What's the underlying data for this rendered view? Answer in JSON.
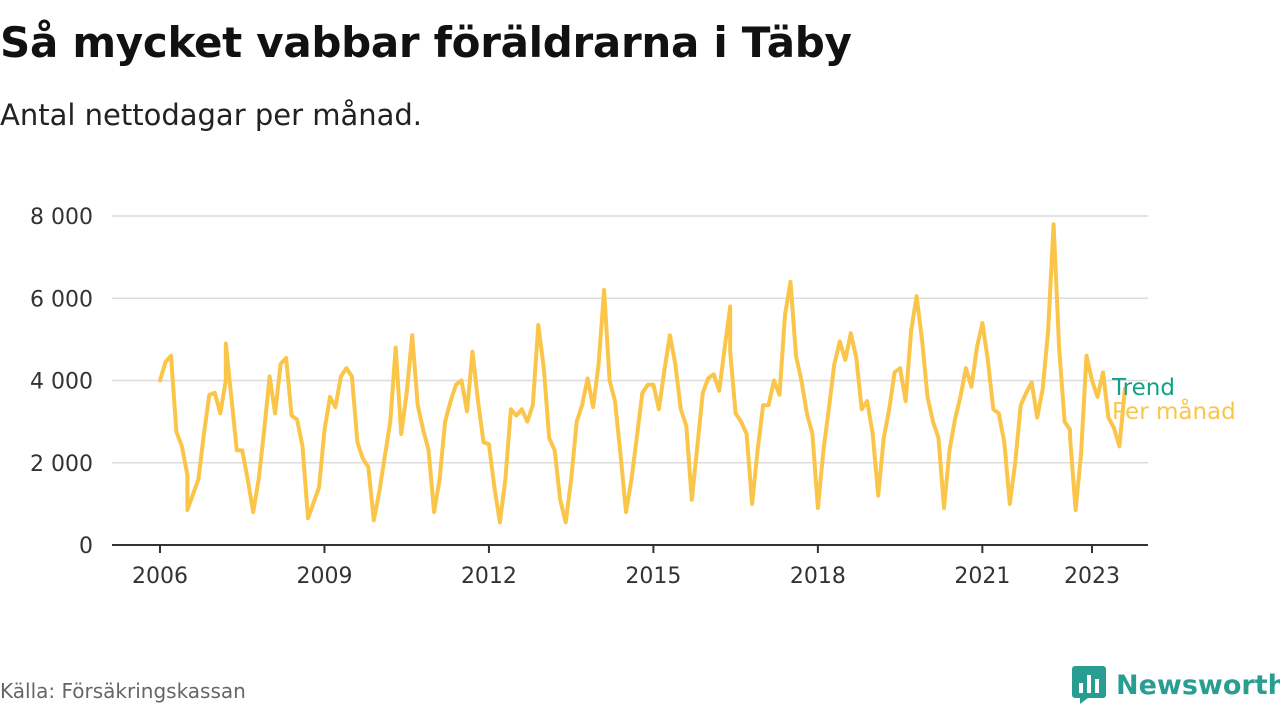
{
  "title": "Så mycket vabbar föräldrarna i Täby",
  "subtitle": "Antal nettodagar per månad.",
  "source": "Källa: Försäkringskassan",
  "brand": "Newsworthy",
  "colors": {
    "monthly": "#fbc54a",
    "trend": "#13a089",
    "grid": "#dcdcdc",
    "axis": "#333333",
    "brand": "#2a9d93"
  },
  "chart_data": {
    "type": "line",
    "title": "Så mycket vabbar föräldrarna i Täby",
    "subtitle": "Antal nettodagar per månad.",
    "x_ticks": [
      "2006",
      "2009",
      "2012",
      "2015",
      "2018",
      "2021",
      "2023"
    ],
    "x_tick_years": [
      2006,
      2009,
      2012,
      2015,
      2018,
      2021,
      2023
    ],
    "y_ticks": [
      0,
      2000,
      4000,
      6000,
      8000
    ],
    "y_tick_labels": [
      "0",
      "2 000",
      "4 000",
      "6 000",
      "8 000"
    ],
    "ylim": [
      0,
      8000
    ],
    "xlim": [
      2006,
      2023.3
    ],
    "grid": "horizontal",
    "legend": "inline labels at end of lines",
    "series": [
      {
        "name": "Per månad",
        "color": "#fbc54a",
        "points": [
          [
            2006.0,
            4000
          ],
          [
            2006.1,
            4450
          ],
          [
            2006.2,
            4600
          ],
          [
            2006.3,
            2750
          ],
          [
            2006.4,
            2400
          ],
          [
            2006.5,
            1700
          ],
          [
            2006.5,
            850
          ],
          [
            2006.7,
            1600
          ],
          [
            2006.8,
            2700
          ],
          [
            2006.9,
            3650
          ],
          [
            2007.0,
            3700
          ],
          [
            2007.1,
            3200
          ],
          [
            2007.2,
            4000
          ],
          [
            2007.2,
            4900
          ],
          [
            2007.3,
            3600
          ],
          [
            2007.4,
            2300
          ],
          [
            2007.5,
            2300
          ],
          [
            2007.6,
            1600
          ],
          [
            2007.7,
            800
          ],
          [
            2007.8,
            1600
          ],
          [
            2007.9,
            2800
          ],
          [
            2008.0,
            4100
          ],
          [
            2008.1,
            3200
          ],
          [
            2008.2,
            4400
          ],
          [
            2008.3,
            4550
          ],
          [
            2008.4,
            3150
          ],
          [
            2008.5,
            3050
          ],
          [
            2008.6,
            2400
          ],
          [
            2008.7,
            650
          ],
          [
            2008.9,
            1400
          ],
          [
            2009.0,
            2800
          ],
          [
            2009.1,
            3600
          ],
          [
            2009.2,
            3350
          ],
          [
            2009.3,
            4100
          ],
          [
            2009.4,
            4300
          ],
          [
            2009.5,
            4100
          ],
          [
            2009.6,
            2500
          ],
          [
            2009.7,
            2100
          ],
          [
            2009.8,
            1900
          ],
          [
            2009.9,
            600
          ],
          [
            2010.0,
            1300
          ],
          [
            2010.2,
            3000
          ],
          [
            2010.3,
            4800
          ],
          [
            2010.4,
            2700
          ],
          [
            2010.5,
            3700
          ],
          [
            2010.6,
            5100
          ],
          [
            2010.7,
            3400
          ],
          [
            2010.8,
            2800
          ],
          [
            2010.9,
            2300
          ],
          [
            2011.0,
            800
          ],
          [
            2011.1,
            1600
          ],
          [
            2011.2,
            3000
          ],
          [
            2011.3,
            3500
          ],
          [
            2011.4,
            3900
          ],
          [
            2011.5,
            4000
          ],
          [
            2011.6,
            3250
          ],
          [
            2011.7,
            4700
          ],
          [
            2011.8,
            3500
          ],
          [
            2011.9,
            2500
          ],
          [
            2012.0,
            2450
          ],
          [
            2012.1,
            1400
          ],
          [
            2012.2,
            550
          ],
          [
            2012.3,
            1600
          ],
          [
            2012.4,
            3300
          ],
          [
            2012.5,
            3150
          ],
          [
            2012.6,
            3300
          ],
          [
            2012.7,
            3000
          ],
          [
            2012.8,
            3400
          ],
          [
            2012.9,
            5350
          ],
          [
            2013.0,
            4300
          ],
          [
            2013.1,
            2600
          ],
          [
            2013.2,
            2300
          ],
          [
            2013.3,
            1100
          ],
          [
            2013.4,
            550
          ],
          [
            2013.5,
            1600
          ],
          [
            2013.6,
            3000
          ],
          [
            2013.7,
            3400
          ],
          [
            2013.8,
            4050
          ],
          [
            2013.9,
            3350
          ],
          [
            2014.0,
            4400
          ],
          [
            2014.1,
            6200
          ],
          [
            2014.2,
            4000
          ],
          [
            2014.3,
            3500
          ],
          [
            2014.4,
            2200
          ],
          [
            2014.5,
            800
          ],
          [
            2014.6,
            1600
          ],
          [
            2014.8,
            3700
          ],
          [
            2014.9,
            3900
          ],
          [
            2015.0,
            3900
          ],
          [
            2015.1,
            3300
          ],
          [
            2015.2,
            4250
          ],
          [
            2015.3,
            5100
          ],
          [
            2015.4,
            4400
          ],
          [
            2015.5,
            3300
          ],
          [
            2015.6,
            2900
          ],
          [
            2015.7,
            1100
          ],
          [
            2015.8,
            2400
          ],
          [
            2015.9,
            3700
          ],
          [
            2016.0,
            4050
          ],
          [
            2016.1,
            4150
          ],
          [
            2016.2,
            3750
          ],
          [
            2016.3,
            4800
          ],
          [
            2016.4,
            5800
          ],
          [
            2016.4,
            4700
          ],
          [
            2016.5,
            3200
          ],
          [
            2016.6,
            3000
          ],
          [
            2016.7,
            2700
          ],
          [
            2016.8,
            1000
          ],
          [
            2016.9,
            2300
          ],
          [
            2017.0,
            3400
          ],
          [
            2017.1,
            3400
          ],
          [
            2017.2,
            4000
          ],
          [
            2017.3,
            3650
          ],
          [
            2017.4,
            5600
          ],
          [
            2017.5,
            6400
          ],
          [
            2017.6,
            4600
          ],
          [
            2017.7,
            4000
          ],
          [
            2017.8,
            3200
          ],
          [
            2017.9,
            2700
          ],
          [
            2018.0,
            900
          ],
          [
            2018.1,
            2300
          ],
          [
            2018.2,
            3300
          ],
          [
            2018.3,
            4400
          ],
          [
            2018.4,
            4950
          ],
          [
            2018.5,
            4500
          ],
          [
            2018.6,
            5150
          ],
          [
            2018.7,
            4550
          ],
          [
            2018.8,
            3300
          ],
          [
            2018.9,
            3500
          ],
          [
            2019.0,
            2700
          ],
          [
            2019.1,
            1200
          ],
          [
            2019.2,
            2600
          ],
          [
            2019.3,
            3300
          ],
          [
            2019.4,
            4200
          ],
          [
            2019.5,
            4300
          ],
          [
            2019.6,
            3500
          ],
          [
            2019.7,
            5200
          ],
          [
            2019.8,
            6050
          ],
          [
            2019.9,
            5000
          ],
          [
            2020.0,
            3600
          ],
          [
            2020.1,
            3000
          ],
          [
            2020.2,
            2600
          ],
          [
            2020.3,
            900
          ],
          [
            2020.4,
            2300
          ],
          [
            2020.5,
            3050
          ],
          [
            2020.6,
            3600
          ],
          [
            2020.7,
            4300
          ],
          [
            2020.8,
            3850
          ],
          [
            2020.9,
            4800
          ],
          [
            2021.0,
            5400
          ],
          [
            2021.1,
            4500
          ],
          [
            2021.2,
            3300
          ],
          [
            2021.3,
            3200
          ],
          [
            2021.4,
            2500
          ],
          [
            2021.5,
            1000
          ],
          [
            2021.6,
            2000
          ],
          [
            2021.7,
            3400
          ],
          [
            2021.8,
            3700
          ],
          [
            2021.9,
            3950
          ],
          [
            2022.0,
            3100
          ],
          [
            2022.1,
            3800
          ],
          [
            2022.2,
            5200
          ],
          [
            2022.3,
            7800
          ],
          [
            2022.4,
            4800
          ],
          [
            2022.5,
            3000
          ],
          [
            2022.6,
            2800
          ],
          [
            2022.6,
            2600
          ],
          [
            2022.7,
            850
          ],
          [
            2022.8,
            2200
          ],
          [
            2022.9,
            4600
          ],
          [
            2023.0,
            4000
          ],
          [
            2023.1,
            3600
          ],
          [
            2023.2,
            4200
          ],
          [
            2023.3,
            3100
          ],
          [
            2023.4,
            2850
          ],
          [
            2023.5,
            2400
          ],
          [
            2023.6,
            3800
          ]
        ]
      },
      {
        "name": "Trend",
        "color": "#13a089",
        "points": []
      }
    ]
  }
}
